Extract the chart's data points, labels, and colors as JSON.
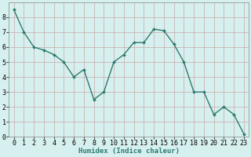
{
  "x": [
    0,
    1,
    2,
    3,
    4,
    5,
    6,
    7,
    8,
    9,
    10,
    11,
    12,
    13,
    14,
    15,
    16,
    17,
    18,
    19,
    20,
    21,
    22,
    23
  ],
  "y": [
    8.5,
    7.0,
    6.0,
    5.8,
    5.5,
    5.0,
    4.0,
    4.5,
    2.5,
    3.0,
    5.0,
    5.5,
    6.3,
    6.3,
    7.2,
    7.1,
    6.2,
    5.0,
    3.0,
    3.0,
    1.5,
    2.0,
    1.5,
    0.2
  ],
  "line_color": "#2d7a6e",
  "marker": "D",
  "marker_size": 2.0,
  "line_width": 1.0,
  "bg_color": "#d6f0ef",
  "grid_color_major": "#c8a8a8",
  "grid_color_minor": "#d6f0ef",
  "xlabel": "Humidex (Indice chaleur)",
  "xlabel_fontsize": 6.5,
  "xlabel_weight": "bold",
  "tick_fontsize": 6.0,
  "xlim": [
    -0.5,
    23.5
  ],
  "ylim": [
    0,
    9.0
  ],
  "yticks": [
    0,
    1,
    2,
    3,
    4,
    5,
    6,
    7,
    8
  ],
  "xticks": [
    0,
    1,
    2,
    3,
    4,
    5,
    6,
    7,
    8,
    9,
    10,
    11,
    12,
    13,
    14,
    15,
    16,
    17,
    18,
    19,
    20,
    21,
    22,
    23
  ],
  "xtick_labels": [
    "0",
    "1",
    "2",
    "3",
    "4",
    "5",
    "6",
    "7",
    "8",
    "9",
    "10",
    "11",
    "12",
    "13",
    "14",
    "15",
    "16",
    "17",
    "18",
    "19",
    "20",
    "21",
    "22",
    "23"
  ]
}
